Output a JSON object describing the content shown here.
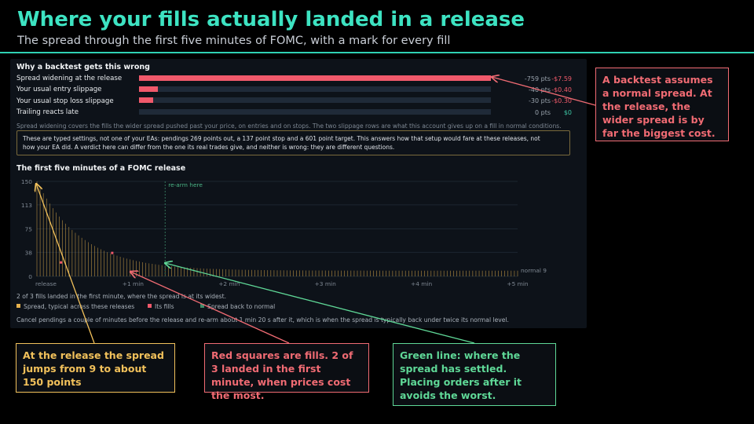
{
  "header": {
    "title": "Where your fills actually landed in a release",
    "subtitle": "The spread through the first five minutes of FOMC, with a mark for every fill"
  },
  "backtest": {
    "heading": "Why a backtest gets this wrong",
    "rows": [
      {
        "label": "Spread widening at the release",
        "points": "-759 pts",
        "points_value": -759,
        "dollars": "-$7.59"
      },
      {
        "label": "Your usual entry slippage",
        "points": "-40 pts",
        "points_value": -40,
        "dollars": "-$0.40"
      },
      {
        "label": "Your usual stop loss slippage",
        "points": "-30 pts",
        "points_value": -30,
        "dollars": "-$0.30"
      },
      {
        "label": "Trailing reacts late",
        "points": "0 pts",
        "points_value": 0,
        "dollars": "$0"
      }
    ],
    "note": "Spread widening covers the fills the wider spread pushed past your price, on entries and on stops. The two slippage rows are what this account gives up on a fill in normal conditions.",
    "settings_line1": "These are typed settings, not one of your EAs: pendings 269 points out, a 137 point stop and a 601 point target.  This answers how that setup would fare at these releases, not",
    "settings_line2": "how your EA did. A verdict here can differ from the one its real trades give, and neither is wrong: they are different questions."
  },
  "chart_section": {
    "heading": "The first five minutes of a FOMC release",
    "rearm_label": "re-arm here",
    "normal_label": "normal 9",
    "caption": "2 of 3 fills landed in the first minute, where the spread is at its widest.",
    "legend": [
      {
        "label": "Spread, typical across these releases",
        "color": "#e5b24e"
      },
      {
        "label": "Its fills",
        "color": "#f0596b"
      },
      {
        "label": "Spread back to normal",
        "color": "#3d8c6a"
      }
    ],
    "footer": "Cancel pendings a couple of minutes before the release and re-arm about 1 min 20 s after it, which is when the spread is typically back under twice its normal level."
  },
  "chart_data": {
    "type": "bar",
    "title": "The first five minutes of a FOMC release",
    "y_ticks": [
      0,
      38,
      75,
      113,
      150
    ],
    "ylim": [
      0,
      150
    ],
    "x_ticks": [
      "release",
      "+1 min",
      "+2 min",
      "+3 min",
      "+4 min",
      "+5 min"
    ],
    "xlim_seconds": [
      0,
      300
    ],
    "normal_spread": 9,
    "peak_spread": 150,
    "rearm_seconds": 80,
    "fills": [
      {
        "t_seconds": 15,
        "spread": 22
      },
      {
        "t_seconds": 47,
        "spread": 37
      }
    ],
    "colors": {
      "spread": "#e5b24e",
      "fills": "#f0596b",
      "rearm": "#3d8c6a"
    }
  },
  "callouts": {
    "top_right": "A backtest assumes a normal spread. At the release, the wider spread is by far the biggest cost.",
    "yellow": "At the release the spread jumps from 9 to about 150 points",
    "red": "Red squares are fills. 2 of 3 landed in the first minute, when prices cost the most.",
    "green": "Green line: where the spread has settled. Placing orders after it avoids the worst."
  }
}
